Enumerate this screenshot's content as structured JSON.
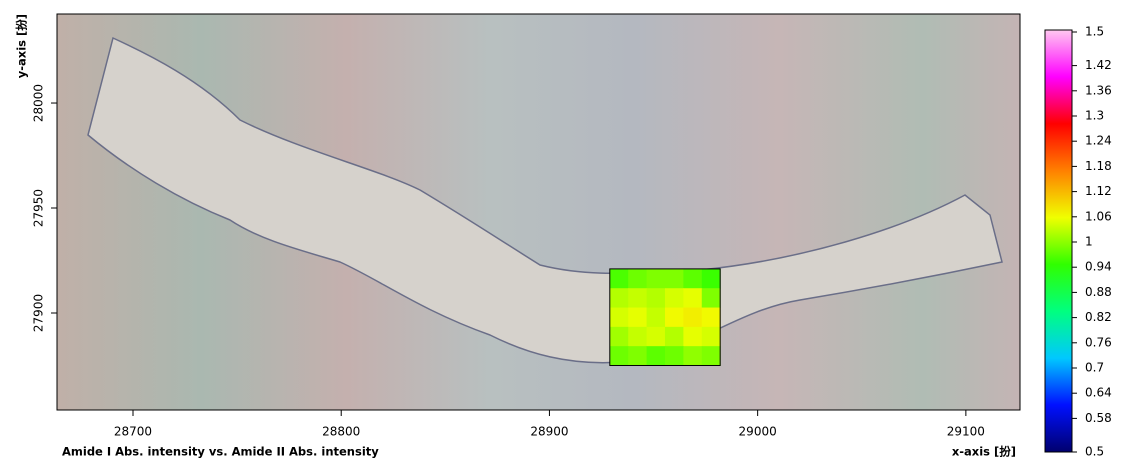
{
  "chart_data": {
    "type": "heatmap",
    "title": "Amide I Abs. intensity vs. Amide II Abs. intensity",
    "x_label": "x-axis [扮]",
    "y_label": "y-axis [扮]",
    "xlim": [
      28663.5,
      29126
    ],
    "ylim": [
      27853.8,
      28042.4
    ],
    "xticks": [
      28700,
      28800,
      28900,
      29000,
      29100
    ],
    "yticks": [
      27900,
      27950,
      28000
    ],
    "x_extent": [
      28929,
      28982
    ],
    "y_extent": [
      27921,
      27875
    ],
    "z": [
      [
        0.96,
        0.98,
        0.99,
        0.99,
        0.97,
        0.95
      ],
      [
        1.02,
        1.03,
        1.02,
        1.04,
        1.05,
        0.99
      ],
      [
        1.04,
        1.05,
        1.03,
        1.06,
        1.07,
        1.06
      ],
      [
        1.01,
        1.03,
        1.04,
        1.02,
        1.05,
        1.04
      ],
      [
        0.98,
        0.99,
        0.97,
        0.98,
        1.0,
        0.99
      ]
    ],
    "zlim": [
      0.5,
      1.5
    ],
    "zticks": [
      0.5,
      0.58,
      0.64,
      0.7,
      0.76,
      0.82,
      0.88,
      0.94,
      1,
      1.06,
      1.12,
      1.18,
      1.24,
      1.3,
      1.36,
      1.42,
      1.5
    ],
    "colorscale": [
      "#00006e",
      "#0010ff",
      "#00c8ff",
      "#00ff80",
      "#30ff00",
      "#f0ff00",
      "#ff8000",
      "#ff0000",
      "#ff00ff",
      "#ffc8f0"
    ]
  }
}
